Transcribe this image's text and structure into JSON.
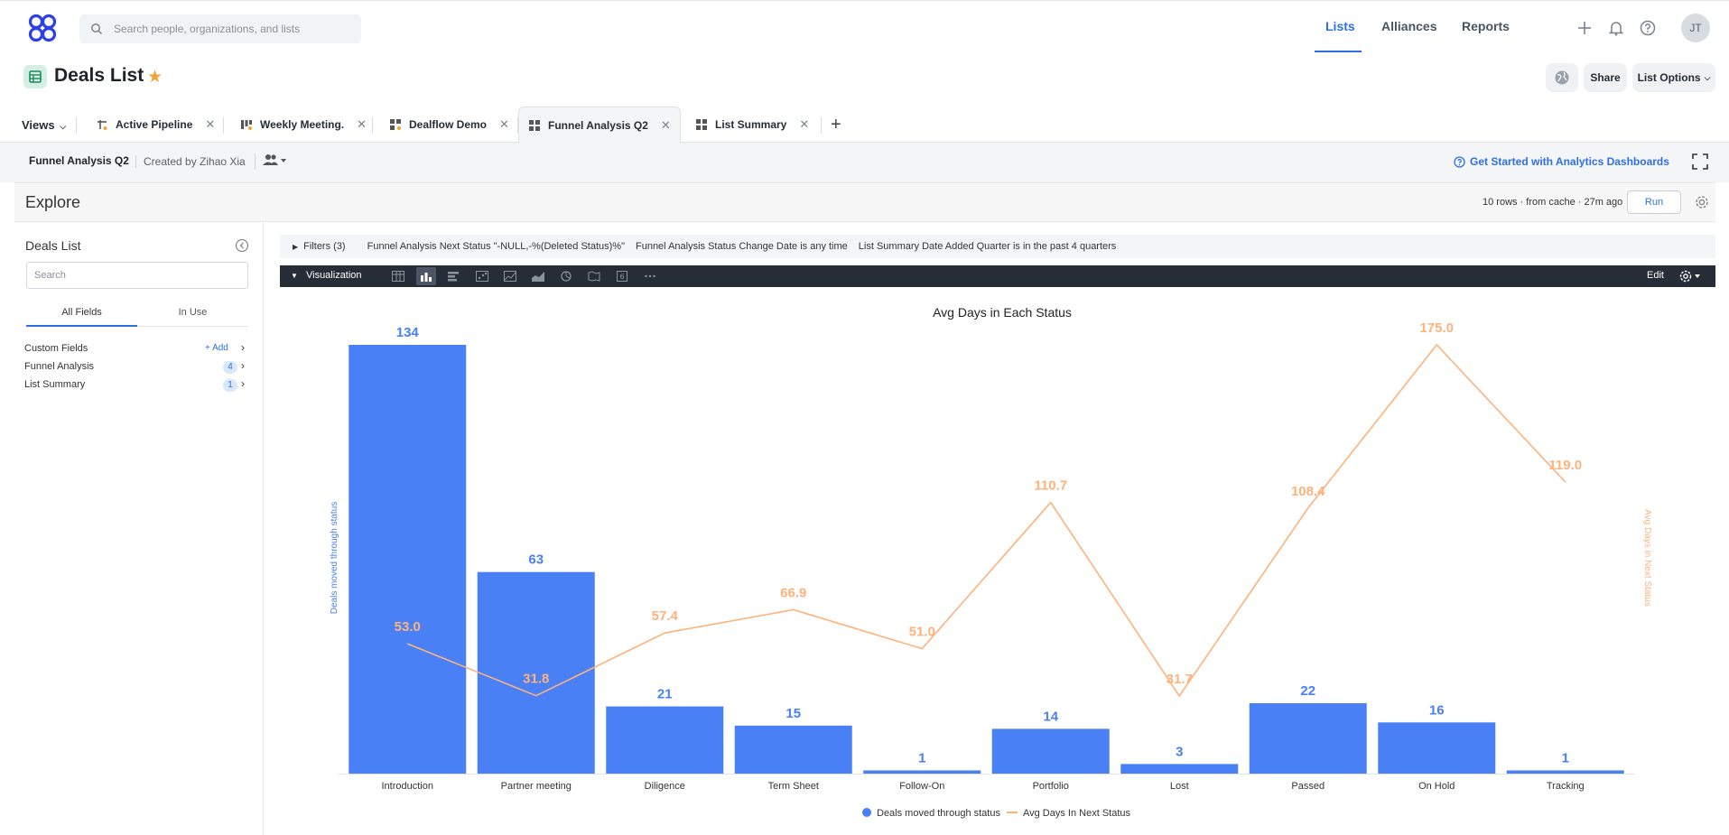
{
  "app": {
    "search_placeholder": "Search people, organizations, and lists",
    "nav": [
      "Lists",
      "Alliances",
      "Reports"
    ],
    "active_nav": "Lists",
    "user_initials": "JT",
    "accent_color": "#2f6fe6"
  },
  "page": {
    "title": "Deals List",
    "share_label": "Share",
    "list_options_label": "List Options"
  },
  "views": {
    "label": "Views",
    "tabs": [
      {
        "label": "Active Pipeline",
        "icon": "pipeline-icon"
      },
      {
        "label": "Weekly Meeting.",
        "icon": "board-icon"
      },
      {
        "label": "Dealflow Demo",
        "icon": "dashboard-icon"
      },
      {
        "label": "Funnel Analysis Q2",
        "icon": "dashboard-icon",
        "active": true
      },
      {
        "label": "List Summary",
        "icon": "dashboard-icon"
      }
    ]
  },
  "dashboard": {
    "title": "Funnel Analysis Q2",
    "created_by": "Created by Zihao Xia",
    "analytics_link": "Get Started with Analytics Dashboards"
  },
  "explore": {
    "title": "Explore",
    "cache_info": "10 rows · from cache · 27m ago",
    "run_label": "Run"
  },
  "left_panel": {
    "title": "Deals List",
    "search_placeholder": "Search",
    "tabs": [
      "All Fields",
      "In Use"
    ],
    "groups": [
      {
        "name": "Custom Fields",
        "add_label": "+ Add"
      },
      {
        "name": "Funnel Analysis",
        "count": "4"
      },
      {
        "name": "List Summary",
        "count": "1"
      }
    ]
  },
  "filters": {
    "label": "Filters (3)",
    "items": [
      "Funnel Analysis Next Status \"-NULL,-%(Deleted Status)%\"",
      "Funnel Analysis Status Change Date is any time",
      "List Summary Date Added Quarter is in the past 4 quarters"
    ]
  },
  "visualization": {
    "label": "Visualization",
    "edit_label": "Edit"
  },
  "chart_data": {
    "type": "bar",
    "title": "Avg Days in Each Status",
    "categories": [
      "Introduction",
      "Partner meeting",
      "Diligence",
      "Term Sheet",
      "Follow-On",
      "Portfolio",
      "Lost",
      "Passed",
      "On Hold",
      "Tracking"
    ],
    "series": [
      {
        "name": "Deals moved through status",
        "type": "bar",
        "axis": "left",
        "color": "#4a80f5",
        "values": [
          134,
          63,
          21,
          15,
          1,
          14,
          3,
          22,
          16,
          1
        ],
        "labels": [
          "134",
          "63",
          "21",
          "15",
          "1",
          "14",
          "3",
          "22",
          "16",
          "1"
        ]
      },
      {
        "name": "Avg Days In Next Status",
        "type": "line",
        "axis": "right",
        "color": "#ffb27a",
        "values": [
          53.0,
          31.8,
          57.4,
          66.9,
          51.0,
          110.7,
          31.7,
          108.4,
          175.0,
          119.0
        ],
        "labels": [
          "53.0",
          "31.8",
          "57.4",
          "66.9",
          "51.0",
          "110.7",
          "31.7",
          "108.4",
          "175.0",
          "119.0"
        ]
      }
    ],
    "ylabel": "Deals moved through status",
    "y2label": "Avg Days in Next Status",
    "ylim": [
      0,
      134
    ],
    "y2lim": [
      0,
      175
    ],
    "legend": "bottom-center"
  }
}
